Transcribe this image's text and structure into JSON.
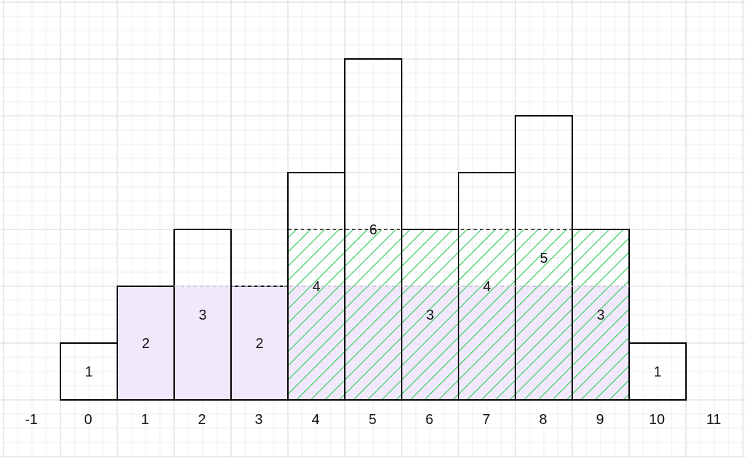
{
  "chart_data": {
    "type": "bar",
    "x_ticks": [
      "-1",
      "0",
      "1",
      "2",
      "3",
      "4",
      "5",
      "6",
      "7",
      "8",
      "9",
      "10",
      "11"
    ],
    "bars": [
      {
        "x": 0,
        "height": 1
      },
      {
        "x": 1,
        "height": 2
      },
      {
        "x": 2,
        "height": 3
      },
      {
        "x": 3,
        "height": 2
      },
      {
        "x": 4,
        "height": 4
      },
      {
        "x": 5,
        "height": 6
      },
      {
        "x": 6,
        "height": 3
      },
      {
        "x": 7,
        "height": 4
      },
      {
        "x": 8,
        "height": 5
      },
      {
        "x": 9,
        "height": 3
      },
      {
        "x": 10,
        "height": 1
      }
    ],
    "bar_labels": [
      {
        "text": "1",
        "x": 0,
        "y": 0.5
      },
      {
        "text": "2",
        "x": 1,
        "y": 1.0
      },
      {
        "text": "3",
        "x": 2,
        "y": 1.5
      },
      {
        "text": "2",
        "x": 3,
        "y": 1.0
      },
      {
        "text": "4",
        "x": 4,
        "y": 2.0
      },
      {
        "text": "6",
        "x": 5,
        "y": 3.0
      },
      {
        "text": "3",
        "x": 6,
        "y": 1.5
      },
      {
        "text": "4",
        "x": 7,
        "y": 2.0
      },
      {
        "text": "5",
        "x": 8,
        "y": 2.5
      },
      {
        "text": "3",
        "x": 9,
        "y": 1.5
      },
      {
        "text": "1",
        "x": 10,
        "y": 0.5
      }
    ],
    "purple_region": {
      "from_x": 1,
      "to_x": 9,
      "level": 2
    },
    "green_hatched_region": {
      "from_x": 4,
      "to_x": 9,
      "level": 3
    },
    "dashed_levels": [
      {
        "y": 2,
        "from_x": 2,
        "to_x": 9,
        "color": "#c7b8d6"
      },
      {
        "y": 3,
        "from_x": 4,
        "to_x": 9,
        "color": "#111111"
      }
    ],
    "grid": true,
    "colors": {
      "purple_fill": "#f1e9fb",
      "green_hatch": "#3fcf6a",
      "bar_stroke": "#000000",
      "grid_minor": "#ececec",
      "grid_major": "#d6d6d6"
    }
  }
}
